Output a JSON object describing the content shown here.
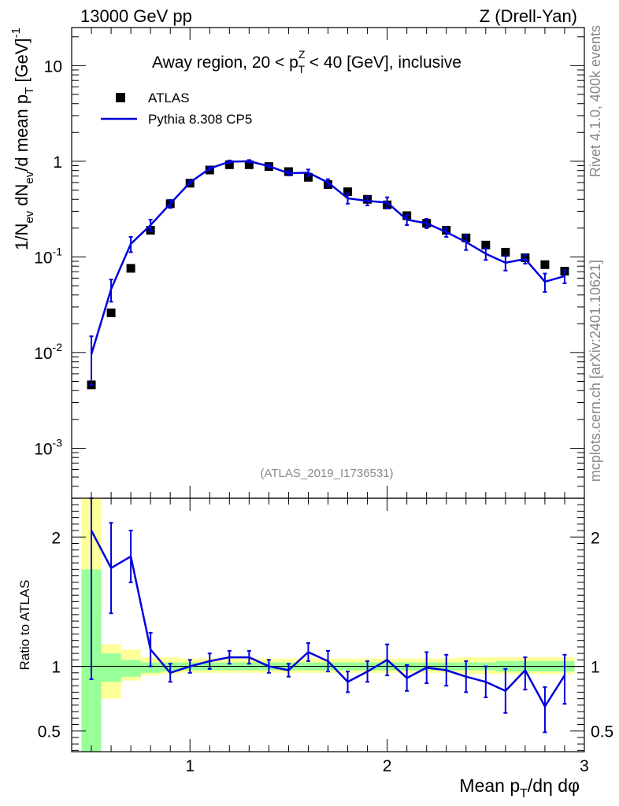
{
  "header": {
    "left_label": "13000 GeV pp",
    "right_label": "Z (Drell-Yan)"
  },
  "side_labels": {
    "rivet": "Rivet 4.1.0,  400k events",
    "mcplots": "mcplots.cern.ch [arXiv:2401.10621]"
  },
  "chart_data": {
    "type": "scatter",
    "title": "Away region, 20 < p_T^Z < 40 [GeV], inclusive",
    "title_parts": {
      "pre": "Away region, 20 < p",
      "sup": "Z",
      "sub": "T",
      "post": " < 40 [GeV], inclusive"
    },
    "analysis_id": "(ATLAS_2019_I1736531)",
    "xlabel": "Mean p_T/dη dφ",
    "xlabel_parts": {
      "pre": "Mean p",
      "sub": "T",
      "post": "/dη dφ"
    },
    "ylabel": "1/N_ev dN_ev/d mean p_T [GeV]^-1",
    "ylabel_parts": {
      "a": "1/N",
      "a_sub": "ev",
      "b": " dN",
      "b_sub": "ev",
      "c": "/d mean p",
      "c_sub": "T",
      "d": " [GeV]",
      "d_sup": "-1"
    },
    "xlim": [
      0.4,
      3.0
    ],
    "ylim": [
      0.0003,
      25
    ],
    "yscale": "log",
    "x_tick_labels": [
      "1",
      "2",
      "3"
    ],
    "y_tick_labels": [
      {
        "mant": "10",
        "exp": "-3",
        "v": 0.001
      },
      {
        "mant": "10",
        "exp": "-2",
        "v": 0.01
      },
      {
        "mant": "10",
        "exp": "-1",
        "v": 0.1
      },
      {
        "mant": "1",
        "exp": "",
        "v": 1
      },
      {
        "mant": "10",
        "exp": "",
        "v": 10
      }
    ],
    "legend": {
      "position": "top-left",
      "entries": [
        "ATLAS",
        "Pythia 8.308 CP5"
      ]
    },
    "x": [
      0.5,
      0.6,
      0.7,
      0.8,
      0.9,
      1.0,
      1.1,
      1.2,
      1.3,
      1.4,
      1.5,
      1.6,
      1.7,
      1.8,
      1.9,
      2.0,
      2.1,
      2.2,
      2.3,
      2.4,
      2.5,
      2.6,
      2.7,
      2.8,
      2.9
    ],
    "series": [
      {
        "name": "ATLAS",
        "style": "markers",
        "color": "#000000",
        "values": [
          0.0046,
          0.026,
          0.076,
          0.19,
          0.36,
          0.59,
          0.81,
          0.92,
          0.92,
          0.88,
          0.78,
          0.68,
          0.57,
          0.48,
          0.4,
          0.35,
          0.27,
          0.225,
          0.19,
          0.158,
          0.133,
          0.112,
          0.098,
          0.083,
          0.071
        ]
      },
      {
        "name": "Pythia 8.308 CP5",
        "style": "line",
        "color": "#0000dd",
        "values": [
          0.0096,
          0.046,
          0.137,
          0.215,
          0.36,
          0.6,
          0.84,
          0.99,
          1.0,
          0.89,
          0.75,
          0.76,
          0.6,
          0.41,
          0.385,
          0.37,
          0.245,
          0.225,
          0.182,
          0.143,
          0.108,
          0.087,
          0.095,
          0.055,
          0.063
        ],
        "err_up": [
          0.0052,
          0.012,
          0.025,
          0.03,
          0.035,
          0.02,
          0.03,
          0.03,
          0.03,
          0.03,
          0.04,
          0.06,
          0.05,
          0.05,
          0.04,
          0.05,
          0.03,
          0.025,
          0.02,
          0.025,
          0.015,
          0.015,
          0.01,
          0.012,
          0.01
        ],
        "err_down": [
          0.005,
          0.012,
          0.025,
          0.03,
          0.035,
          0.02,
          0.03,
          0.03,
          0.03,
          0.03,
          0.04,
          0.06,
          0.05,
          0.05,
          0.04,
          0.05,
          0.03,
          0.025,
          0.02,
          0.025,
          0.015,
          0.015,
          0.01,
          0.012,
          0.01
        ]
      }
    ],
    "ratio": {
      "ylabel": "Ratio to ATLAS",
      "ylim": [
        0.34,
        2.3
      ],
      "y_tick_labels": [
        {
          "label": "0.5",
          "v": 0.5
        },
        {
          "label": "1",
          "v": 1
        },
        {
          "label": "2",
          "v": 2
        }
      ],
      "values": [
        2.05,
        1.76,
        1.85,
        1.13,
        0.95,
        1.0,
        1.04,
        1.07,
        1.07,
        1.0,
        0.97,
        1.11,
        1.04,
        0.88,
        0.96,
        1.05,
        0.91,
        0.99,
        0.97,
        0.92,
        0.88,
        0.81,
        0.97,
        0.69,
        0.93
      ],
      "err_up": [
        0.85,
        0.35,
        0.2,
        0.13,
        0.07,
        0.05,
        0.06,
        0.05,
        0.05,
        0.05,
        0.05,
        0.07,
        0.08,
        0.08,
        0.08,
        0.12,
        0.1,
        0.12,
        0.12,
        0.12,
        0.12,
        0.17,
        0.1,
        0.15,
        0.16
      ],
      "err_down": [
        1.15,
        0.35,
        0.2,
        0.13,
        0.07,
        0.05,
        0.06,
        0.05,
        0.05,
        0.05,
        0.05,
        0.07,
        0.08,
        0.08,
        0.08,
        0.12,
        0.1,
        0.12,
        0.12,
        0.12,
        0.12,
        0.17,
        0.15,
        0.2,
        0.22
      ],
      "band_edges": [
        0.45,
        0.55,
        0.65,
        0.75,
        0.85,
        0.95,
        1.05,
        1.15,
        1.25,
        1.35,
        1.45,
        1.55,
        1.65,
        1.75,
        1.85,
        1.95,
        2.05,
        2.15,
        2.25,
        2.35,
        2.45,
        2.55,
        2.65,
        2.75,
        2.85,
        2.95
      ],
      "green_band": [
        [
          0.34,
          1.75
        ],
        [
          0.88,
          1.1
        ],
        [
          0.92,
          1.05
        ],
        [
          0.95,
          1.03
        ],
        [
          0.96,
          1.03
        ],
        [
          0.97,
          1.03
        ],
        [
          0.97,
          1.03
        ],
        [
          0.97,
          1.03
        ],
        [
          0.97,
          1.03
        ],
        [
          0.97,
          1.03
        ],
        [
          0.97,
          1.03
        ],
        [
          0.97,
          1.03
        ],
        [
          0.97,
          1.03
        ],
        [
          0.97,
          1.03
        ],
        [
          0.97,
          1.03
        ],
        [
          0.97,
          1.03
        ],
        [
          0.97,
          1.03
        ],
        [
          0.97,
          1.03
        ],
        [
          0.97,
          1.03
        ],
        [
          0.97,
          1.03
        ],
        [
          0.97,
          1.03
        ],
        [
          0.96,
          1.04
        ],
        [
          0.96,
          1.04
        ],
        [
          0.96,
          1.04
        ],
        [
          0.96,
          1.04
        ]
      ],
      "yellow_band": [
        [
          0.34,
          2.3
        ],
        [
          0.75,
          1.17
        ],
        [
          0.89,
          1.13
        ],
        [
          0.93,
          1.07
        ],
        [
          0.94,
          1.07
        ],
        [
          0.95,
          1.06
        ],
        [
          0.95,
          1.06
        ],
        [
          0.95,
          1.06
        ],
        [
          0.95,
          1.06
        ],
        [
          0.95,
          1.06
        ],
        [
          0.95,
          1.06
        ],
        [
          0.95,
          1.06
        ],
        [
          0.95,
          1.06
        ],
        [
          0.95,
          1.06
        ],
        [
          0.95,
          1.06
        ],
        [
          0.95,
          1.06
        ],
        [
          0.95,
          1.06
        ],
        [
          0.95,
          1.06
        ],
        [
          0.95,
          1.06
        ],
        [
          0.94,
          1.07
        ],
        [
          0.94,
          1.07
        ],
        [
          0.94,
          1.07
        ],
        [
          0.94,
          1.07
        ],
        [
          0.94,
          1.07
        ],
        [
          0.94,
          1.07
        ]
      ],
      "colors": {
        "green": "#99ff99",
        "yellow": "#ffff99",
        "line": "#0000dd"
      }
    }
  }
}
